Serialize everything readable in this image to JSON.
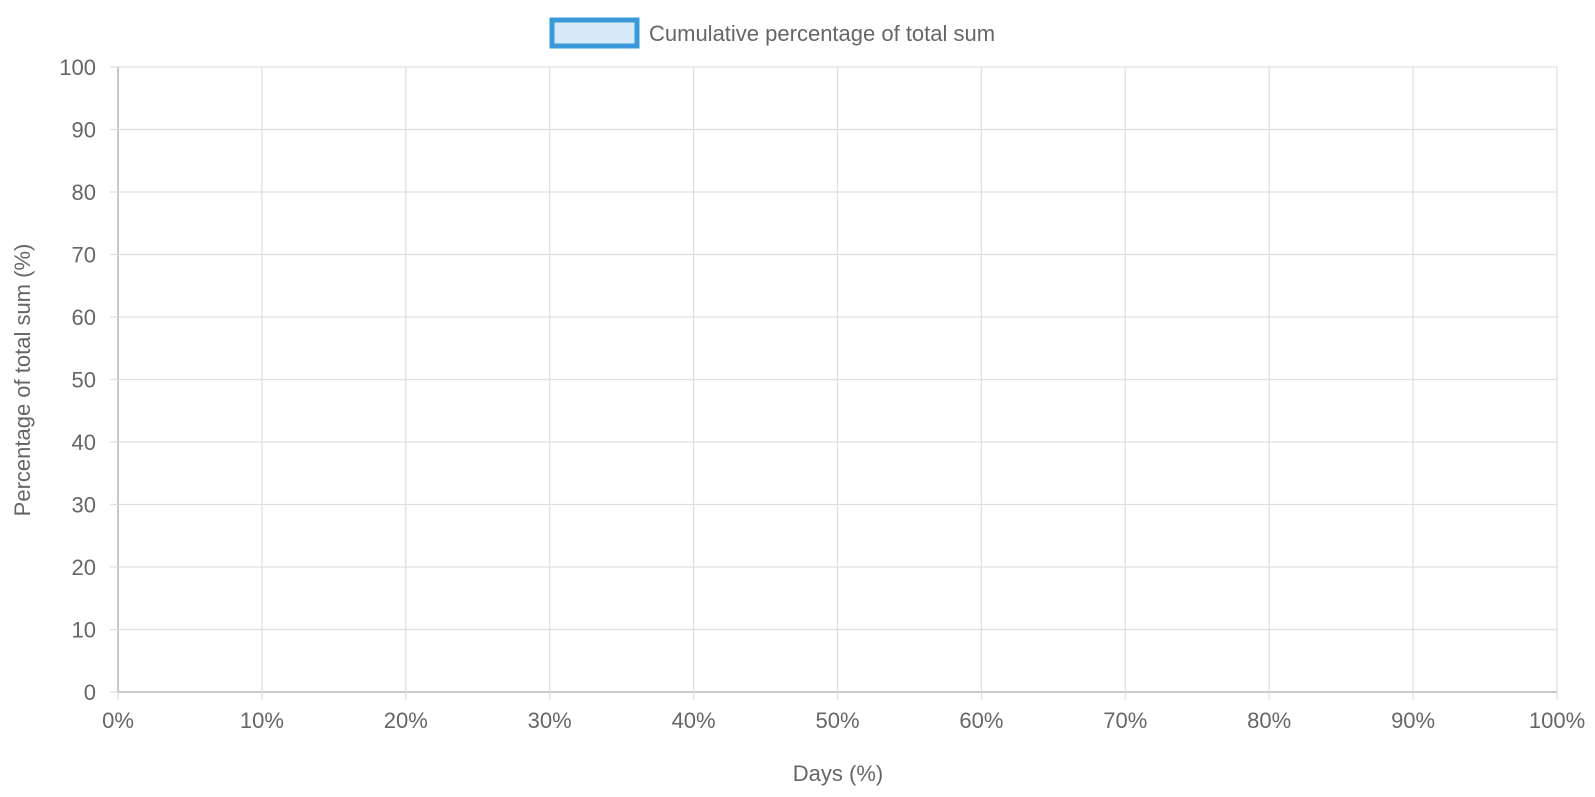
{
  "chart_data": {
    "type": "line",
    "title": "",
    "xlabel": "Days (%)",
    "ylabel": "Percentage of total sum (%)",
    "xlim": [
      0,
      100
    ],
    "ylim": [
      0,
      100
    ],
    "x_ticks": [
      "0%",
      "10%",
      "20%",
      "30%",
      "40%",
      "50%",
      "60%",
      "70%",
      "80%",
      "90%",
      "100%"
    ],
    "y_ticks": [
      "0",
      "10",
      "20",
      "30",
      "40",
      "50",
      "60",
      "70",
      "80",
      "90",
      "100"
    ],
    "grid": true,
    "legend_position": "top",
    "series": [
      {
        "name": "Cumulative percentage of total sum",
        "border_color": "#3a9ad9",
        "fill_color": "#d6e9f8",
        "x": [],
        "y": []
      }
    ]
  },
  "colors": {
    "grid": "#e0e0e0",
    "axis": "#c8c8c8",
    "text": "#666666"
  }
}
